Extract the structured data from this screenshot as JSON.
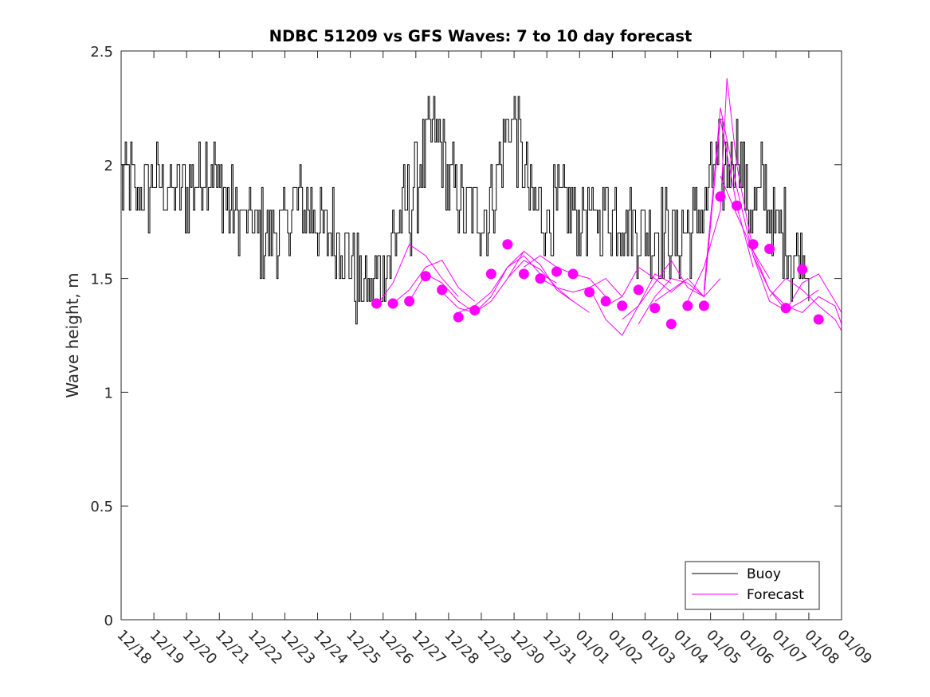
{
  "chart_data": {
    "type": "line",
    "title": "NDBC 51209 vs GFS Waves: 7 to 10 day forecast",
    "xlabel": "",
    "ylabel": "Wave height, m",
    "x_tick_labels": [
      "12/18",
      "12/19",
      "12/20",
      "12/21",
      "12/22",
      "12/23",
      "12/24",
      "12/25",
      "12/26",
      "12/27",
      "12/28",
      "12/29",
      "12/30",
      "12/31",
      "01/01",
      "01/02",
      "01/03",
      "01/04",
      "01/05",
      "01/06",
      "01/07",
      "01/08",
      "01/09"
    ],
    "xlim": [
      0,
      22
    ],
    "ylim": [
      0,
      2.5
    ],
    "y_ticks": [
      0,
      0.5,
      1,
      1.5,
      2,
      2.5
    ],
    "y_tick_labels": [
      "0",
      "0.5",
      "1",
      "1.5",
      "2",
      "2.5"
    ],
    "x_units": "days since 12/18",
    "legend": {
      "position": "bottom-right",
      "entries": [
        "Buoy",
        "Forecast"
      ]
    },
    "colors": {
      "buoy": "#000000",
      "forecast": "#ff00ff"
    },
    "buoy": {
      "name": "Buoy",
      "x": [
        0.0,
        0.5,
        1.0,
        1.5,
        2.0,
        2.5,
        2.8,
        3.0,
        3.5,
        4.0,
        4.5,
        5.0,
        5.5,
        6.0,
        6.5,
        7.0,
        7.3,
        7.6,
        8.0,
        8.5,
        8.8,
        9.0,
        9.3,
        9.6,
        10.0,
        10.3,
        10.6,
        11.0,
        11.3,
        11.6,
        11.9,
        12.2,
        12.5,
        13.0,
        13.5,
        14.0,
        14.5,
        15.0,
        15.5,
        16.0,
        16.5,
        17.0,
        17.5,
        17.9,
        18.2,
        18.5,
        18.8,
        19.0,
        19.3,
        19.6,
        19.9,
        20.2,
        20.5,
        20.8,
        21.0
      ],
      "y": [
        1.9,
        1.85,
        1.95,
        1.85,
        1.9,
        1.95,
        2.0,
        1.9,
        1.75,
        1.75,
        1.7,
        1.75,
        1.8,
        1.75,
        1.7,
        1.6,
        1.45,
        1.45,
        1.55,
        1.75,
        1.8,
        1.9,
        2.05,
        2.15,
        1.9,
        1.85,
        1.8,
        1.75,
        1.85,
        2.05,
        2.25,
        2.05,
        1.8,
        1.75,
        1.8,
        1.75,
        1.75,
        1.8,
        1.75,
        1.7,
        1.7,
        1.65,
        1.75,
        1.85,
        2.05,
        1.95,
        2.15,
        1.9,
        1.75,
        1.9,
        1.75,
        1.7,
        1.6,
        1.65,
        1.6
      ]
    },
    "forecast_lines": [
      {
        "name": "Forecast",
        "x": [
          7.8,
          8.3,
          8.8,
          9.3,
          9.8,
          10.3
        ],
        "y": [
          1.38,
          1.48,
          1.65,
          1.6,
          1.5,
          1.42
        ]
      },
      {
        "name": "Forecast",
        "x": [
          8.3,
          8.8,
          9.3,
          9.8,
          10.3,
          10.8
        ],
        "y": [
          1.39,
          1.45,
          1.55,
          1.58,
          1.46,
          1.4
        ]
      },
      {
        "name": "Forecast",
        "x": [
          8.8,
          9.3,
          9.8,
          10.3,
          10.8,
          11.3
        ],
        "y": [
          1.4,
          1.52,
          1.48,
          1.4,
          1.35,
          1.4
        ]
      },
      {
        "name": "Forecast",
        "x": [
          9.8,
          10.3,
          10.8,
          11.3,
          11.8,
          12.3
        ],
        "y": [
          1.44,
          1.37,
          1.35,
          1.42,
          1.55,
          1.62
        ]
      },
      {
        "name": "Forecast",
        "x": [
          10.3,
          10.8,
          11.3,
          11.8,
          12.3,
          12.8,
          13.3
        ],
        "y": [
          1.35,
          1.38,
          1.44,
          1.55,
          1.6,
          1.52,
          1.48
        ]
      },
      {
        "name": "Forecast",
        "x": [
          11.3,
          11.8,
          12.3,
          12.8,
          13.3,
          13.8
        ],
        "y": [
          1.4,
          1.5,
          1.58,
          1.54,
          1.46,
          1.4
        ]
      },
      {
        "name": "Forecast",
        "x": [
          11.8,
          12.3,
          12.8,
          13.3,
          13.8,
          14.3
        ],
        "y": [
          1.5,
          1.62,
          1.56,
          1.45,
          1.4,
          1.35
        ]
      },
      {
        "name": "Forecast",
        "x": [
          12.3,
          12.8,
          13.3,
          13.8,
          14.3,
          14.8
        ],
        "y": [
          1.55,
          1.6,
          1.55,
          1.52,
          1.5,
          1.42
        ]
      },
      {
        "name": "Forecast",
        "x": [
          12.8,
          13.3,
          13.8,
          14.3,
          14.8,
          15.3
        ],
        "y": [
          1.5,
          1.46,
          1.44,
          1.46,
          1.5,
          1.42
        ]
      },
      {
        "name": "Forecast",
        "x": [
          14.3,
          14.8,
          15.3,
          15.8,
          16.3,
          16.8
        ],
        "y": [
          1.46,
          1.32,
          1.25,
          1.38,
          1.52,
          1.48
        ]
      },
      {
        "name": "Forecast",
        "x": [
          14.8,
          15.3,
          15.8,
          16.3,
          16.8,
          17.3
        ],
        "y": [
          1.38,
          1.42,
          1.55,
          1.5,
          1.44,
          1.5
        ]
      },
      {
        "name": "Forecast",
        "x": [
          15.3,
          15.8,
          16.3,
          16.8,
          17.3,
          17.8
        ],
        "y": [
          1.32,
          1.38,
          1.48,
          1.58,
          1.46,
          1.42
        ]
      },
      {
        "name": "Forecast",
        "x": [
          15.8,
          16.3,
          16.8,
          17.3,
          17.8,
          18.3
        ],
        "y": [
          1.3,
          1.42,
          1.5,
          1.48,
          1.42,
          1.5
        ]
      },
      {
        "name": "Forecast",
        "x": [
          16.3,
          16.8,
          17.3,
          17.8,
          18.3,
          18.8,
          19.3
        ],
        "y": [
          1.4,
          1.45,
          1.5,
          1.42,
          2.2,
          1.82,
          1.55
        ]
      },
      {
        "name": "Forecast",
        "x": [
          17.3,
          17.8,
          18.3,
          18.5,
          18.8,
          19.3,
          19.8
        ],
        "y": [
          1.4,
          1.55,
          1.8,
          2.38,
          2.0,
          1.62,
          1.5
        ]
      },
      {
        "name": "Forecast",
        "x": [
          17.8,
          18.3,
          18.8,
          19.3,
          19.8,
          20.3
        ],
        "y": [
          1.45,
          2.25,
          1.9,
          1.6,
          1.4,
          1.36
        ]
      },
      {
        "name": "Forecast",
        "x": [
          18.3,
          18.8,
          19.3,
          19.8,
          20.3,
          20.8,
          21.3
        ],
        "y": [
          1.95,
          1.78,
          1.62,
          1.45,
          1.36,
          1.4,
          1.45
        ]
      },
      {
        "name": "Forecast",
        "x": [
          19.3,
          19.8,
          20.3,
          20.8,
          21.3,
          21.8,
          22.0
        ],
        "y": [
          1.6,
          1.45,
          1.38,
          1.35,
          1.42,
          1.38,
          1.3
        ]
      },
      {
        "name": "Forecast",
        "x": [
          19.8,
          20.3,
          20.8,
          21.3,
          21.8,
          22.0
        ],
        "y": [
          1.42,
          1.5,
          1.45,
          1.38,
          1.32,
          1.27
        ]
      },
      {
        "name": "Forecast",
        "x": [
          20.3,
          20.8,
          21.3,
          21.8,
          22.0
        ],
        "y": [
          1.36,
          1.48,
          1.52,
          1.4,
          1.35
        ]
      }
    ],
    "forecast_points": {
      "x": [
        7.8,
        8.3,
        8.8,
        9.3,
        9.8,
        10.3,
        10.8,
        11.3,
        11.8,
        12.3,
        12.8,
        13.3,
        13.8,
        14.3,
        14.8,
        15.3,
        15.8,
        16.3,
        16.8,
        17.3,
        17.8,
        18.3,
        18.8,
        19.3,
        19.8,
        20.3,
        20.8,
        21.3
      ],
      "y": [
        1.39,
        1.39,
        1.4,
        1.51,
        1.45,
        1.33,
        1.36,
        1.52,
        1.65,
        1.52,
        1.5,
        1.53,
        1.52,
        1.44,
        1.4,
        1.38,
        1.45,
        1.37,
        1.3,
        1.38,
        1.38,
        1.86,
        1.82,
        1.65,
        1.63,
        1.37,
        1.54,
        1.32
      ]
    }
  }
}
